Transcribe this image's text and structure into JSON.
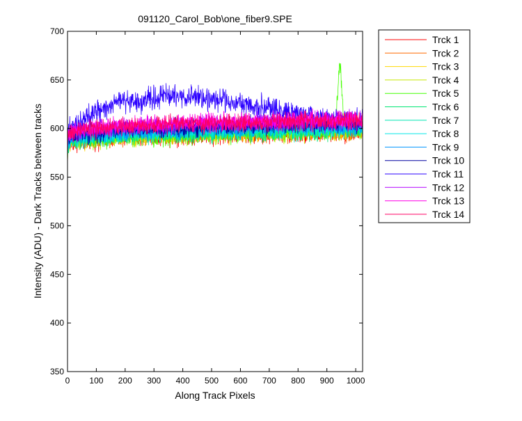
{
  "chart_data": {
    "type": "line",
    "title": "091120_Carol_Bob\\one_fiber9.SPE",
    "xlabel": "Along Track Pixels",
    "ylabel": "Intensity (ADU) - Dark Tracks between tracks",
    "xlim": [
      0,
      1024
    ],
    "ylim": [
      350,
      700
    ],
    "xticks": [
      0,
      100,
      200,
      300,
      400,
      500,
      600,
      700,
      800,
      900,
      1000
    ],
    "yticks": [
      350,
      400,
      450,
      500,
      550,
      600,
      650,
      700
    ],
    "grid": false,
    "legend_position": "outside-top-right",
    "x_sample_points": [
      0,
      20,
      50,
      100,
      150,
      180,
      200,
      250,
      300,
      350,
      400,
      450,
      500,
      550,
      600,
      650,
      700,
      750,
      800,
      850,
      900,
      930,
      945,
      960,
      1000,
      1024
    ],
    "series": [
      {
        "name": "Trck 1",
        "color": "#ff0000",
        "noise": 7,
        "values": [
          583,
          585,
          586,
          588,
          589,
          590,
          590,
          591,
          592,
          592,
          592,
          593,
          593,
          593,
          593,
          593,
          594,
          594,
          594,
          595,
          595,
          595,
          595,
          595,
          596,
          596
        ]
      },
      {
        "name": "Trck 2",
        "color": "#ff6a00",
        "noise": 7,
        "values": [
          584,
          586,
          587,
          589,
          590,
          590,
          591,
          592,
          592,
          593,
          593,
          593,
          594,
          594,
          594,
          595,
          595,
          595,
          596,
          596,
          596,
          596,
          596,
          596,
          597,
          597
        ]
      },
      {
        "name": "Trck 3",
        "color": "#ffd700",
        "noise": 7,
        "values": [
          585,
          587,
          588,
          589,
          590,
          591,
          591,
          592,
          593,
          593,
          594,
          594,
          594,
          595,
          595,
          595,
          596,
          596,
          596,
          597,
          597,
          597,
          597,
          597,
          598,
          598
        ]
      },
      {
        "name": "Trck 4",
        "color": "#c8e600",
        "noise": 7,
        "values": [
          584,
          586,
          588,
          589,
          590,
          591,
          592,
          592,
          593,
          594,
          594,
          595,
          595,
          595,
          596,
          596,
          596,
          597,
          597,
          597,
          598,
          598,
          598,
          598,
          598,
          598
        ]
      },
      {
        "name": "Trck 5",
        "color": "#44ff00",
        "noise": 7,
        "values": [
          586,
          587,
          588,
          589,
          590,
          590,
          591,
          592,
          592,
          592,
          593,
          593,
          594,
          594,
          595,
          595,
          596,
          596,
          597,
          597,
          598,
          600,
          670,
          602,
          601,
          600
        ]
      },
      {
        "name": "Trck 6",
        "color": "#00e673",
        "noise": 7,
        "values": [
          586,
          588,
          589,
          591,
          592,
          593,
          593,
          594,
          594,
          595,
          595,
          595,
          596,
          596,
          596,
          597,
          597,
          597,
          598,
          598,
          598,
          598,
          598,
          598,
          599,
          599
        ]
      },
      {
        "name": "Trck 7",
        "color": "#00e6b4",
        "noise": 7,
        "values": [
          587,
          589,
          590,
          591,
          592,
          593,
          594,
          594,
          595,
          595,
          596,
          596,
          596,
          597,
          597,
          597,
          598,
          598,
          598,
          599,
          599,
          599,
          599,
          599,
          599,
          599
        ]
      },
      {
        "name": "Trck 8",
        "color": "#00e6e6",
        "noise": 7,
        "values": [
          588,
          590,
          591,
          593,
          594,
          594,
          595,
          596,
          596,
          597,
          597,
          597,
          598,
          598,
          598,
          599,
          599,
          599,
          600,
          600,
          600,
          600,
          600,
          600,
          601,
          601
        ]
      },
      {
        "name": "Trck 9",
        "color": "#0096ff",
        "noise": 7,
        "values": [
          589,
          591,
          592,
          594,
          595,
          596,
          596,
          597,
          598,
          598,
          599,
          599,
          600,
          600,
          600,
          601,
          601,
          601,
          602,
          602,
          602,
          602,
          602,
          602,
          603,
          603
        ]
      },
      {
        "name": "Trck 10",
        "color": "#0000a0",
        "noise": 7,
        "values": [
          590,
          593,
          594,
          596,
          597,
          598,
          598,
          599,
          600,
          600,
          601,
          601,
          602,
          602,
          603,
          603,
          603,
          604,
          604,
          605,
          605,
          605,
          605,
          605,
          605,
          605
        ]
      },
      {
        "name": "Trck 11",
        "color": "#2b00ff",
        "noise": 9,
        "values": [
          596,
          600,
          608,
          616,
          622,
          628,
          630,
          628,
          632,
          633,
          632,
          633,
          631,
          629,
          625,
          622,
          620,
          617,
          615,
          613,
          612,
          611,
          611,
          611,
          610,
          610
        ]
      },
      {
        "name": "Trck 12",
        "color": "#b400ff",
        "noise": 7,
        "values": [
          592,
          595,
          597,
          599,
          600,
          601,
          602,
          602,
          603,
          603,
          604,
          604,
          605,
          605,
          606,
          606,
          606,
          607,
          607,
          607,
          608,
          608,
          608,
          608,
          608,
          608
        ]
      },
      {
        "name": "Trck 13",
        "color": "#ff00e6",
        "noise": 7,
        "values": [
          594,
          597,
          599,
          601,
          602,
          603,
          603,
          604,
          605,
          605,
          606,
          606,
          607,
          607,
          607,
          608,
          608,
          608,
          609,
          609,
          609,
          609,
          609,
          609,
          610,
          610
        ]
      },
      {
        "name": "Trck 14",
        "color": "#ff0064",
        "noise": 7,
        "values": [
          593,
          596,
          598,
          600,
          601,
          602,
          602,
          603,
          604,
          604,
          605,
          605,
          605,
          606,
          606,
          606,
          607,
          607,
          607,
          608,
          608,
          608,
          608,
          608,
          608,
          608
        ]
      }
    ]
  }
}
